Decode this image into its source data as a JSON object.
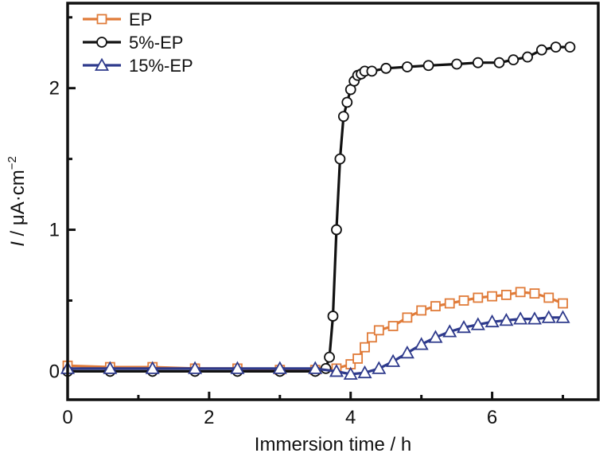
{
  "chart_data": {
    "type": "line",
    "title": "",
    "xlabel": "Immersion time / h",
    "ylabel": "I / μA·cm⁻²",
    "ylabel_parts": {
      "symbol": "I",
      "rest": " / μA·cm",
      "superscript": "−2"
    },
    "xlim": [
      0,
      7.5
    ],
    "ylim": [
      -0.2,
      2.6
    ],
    "x_ticks": [
      "0",
      "2",
      "4",
      "6"
    ],
    "x_tick_values": [
      0,
      2,
      4,
      6
    ],
    "y_ticks": [
      "0",
      "1",
      "2"
    ],
    "y_tick_values": [
      0,
      1,
      2
    ],
    "grid": false,
    "legend_position": "top-left",
    "series": [
      {
        "name": "EP",
        "color": "#e07b39",
        "marker": "square",
        "x": [
          0.0,
          0.6,
          1.2,
          1.8,
          2.4,
          3.0,
          3.5,
          3.8,
          4.0,
          4.1,
          4.2,
          4.3,
          4.4,
          4.6,
          4.8,
          5.0,
          5.2,
          5.4,
          5.6,
          5.8,
          6.0,
          6.2,
          6.4,
          6.6,
          6.8,
          7.0
        ],
        "y": [
          0.04,
          0.03,
          0.03,
          0.02,
          0.02,
          0.01,
          0.01,
          0.02,
          0.05,
          0.09,
          0.17,
          0.24,
          0.29,
          0.32,
          0.38,
          0.43,
          0.46,
          0.48,
          0.5,
          0.52,
          0.53,
          0.54,
          0.56,
          0.55,
          0.52,
          0.48
        ]
      },
      {
        "name": "5%-EP",
        "color": "#111111",
        "marker": "circle",
        "x": [
          0.0,
          0.6,
          1.2,
          1.8,
          2.4,
          3.0,
          3.5,
          3.65,
          3.7,
          3.75,
          3.8,
          3.85,
          3.9,
          3.95,
          4.0,
          4.05,
          4.1,
          4.15,
          4.2,
          4.3,
          4.5,
          4.8,
          5.1,
          5.5,
          5.8,
          6.1,
          6.3,
          6.5,
          6.7,
          6.9,
          7.1
        ],
        "y": [
          0.0,
          0.0,
          0.0,
          0.0,
          0.0,
          0.0,
          0.0,
          0.02,
          0.1,
          0.39,
          1.0,
          1.5,
          1.8,
          1.9,
          1.99,
          2.05,
          2.09,
          2.1,
          2.12,
          2.12,
          2.14,
          2.15,
          2.16,
          2.17,
          2.18,
          2.18,
          2.2,
          2.22,
          2.27,
          2.29,
          2.29
        ]
      },
      {
        "name": "15%-EP",
        "color": "#2e3a8c",
        "marker": "triangle",
        "x": [
          0.0,
          0.6,
          1.2,
          1.8,
          2.4,
          3.0,
          3.5,
          3.8,
          4.0,
          4.2,
          4.4,
          4.6,
          4.8,
          5.0,
          5.2,
          5.4,
          5.6,
          5.8,
          6.0,
          6.2,
          6.4,
          6.6,
          6.8,
          7.0
        ],
        "y": [
          0.02,
          0.02,
          0.02,
          0.02,
          0.02,
          0.02,
          0.02,
          0.0,
          -0.02,
          -0.01,
          0.02,
          0.07,
          0.13,
          0.19,
          0.24,
          0.28,
          0.31,
          0.33,
          0.35,
          0.36,
          0.37,
          0.37,
          0.38,
          0.38
        ]
      }
    ]
  }
}
